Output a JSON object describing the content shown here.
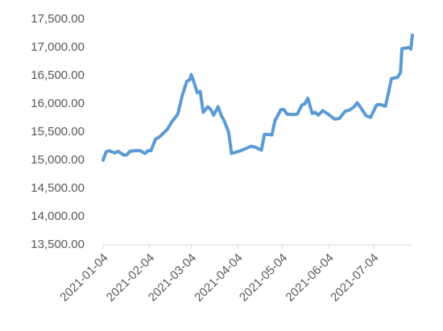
{
  "chart_data": {
    "type": "line",
    "x": [
      "2021-01-04",
      "2021-01-06",
      "2021-01-08",
      "2021-01-12",
      "2021-01-14",
      "2021-01-18",
      "2021-01-20",
      "2021-01-22",
      "2021-01-26",
      "2021-01-29",
      "2021-02-01",
      "2021-02-03",
      "2021-02-05",
      "2021-02-08",
      "2021-02-11",
      "2021-02-16",
      "2021-02-19",
      "2021-02-23",
      "2021-02-26",
      "2021-03-01",
      "2021-03-03",
      "2021-03-04",
      "2021-03-05",
      "2021-03-08",
      "2021-03-10",
      "2021-03-12",
      "2021-03-15",
      "2021-03-17",
      "2021-03-19",
      "2021-03-22",
      "2021-03-24",
      "2021-03-26",
      "2021-03-29",
      "2021-03-31",
      "2021-04-06",
      "2021-04-09",
      "2021-04-13",
      "2021-04-16",
      "2021-04-20",
      "2021-04-22",
      "2021-04-27",
      "2021-04-29",
      "2021-05-03",
      "2021-05-05",
      "2021-05-07",
      "2021-05-11",
      "2021-05-14",
      "2021-05-17",
      "2021-05-19",
      "2021-05-21",
      "2021-05-24",
      "2021-05-26",
      "2021-05-28",
      "2021-05-31",
      "2021-06-03",
      "2021-06-08",
      "2021-06-11",
      "2021-06-15",
      "2021-06-18",
      "2021-06-21",
      "2021-06-23",
      "2021-06-25",
      "2021-06-29",
      "2021-07-02",
      "2021-07-06",
      "2021-07-08",
      "2021-07-12",
      "2021-07-14",
      "2021-07-16",
      "2021-07-20",
      "2021-07-22",
      "2021-07-23",
      "2021-07-28",
      "2021-07-29",
      "2021-07-30"
    ],
    "series": [
      {
        "color": "#5b9bd5",
        "values": [
          15000,
          15150,
          15170,
          15130,
          15160,
          15090,
          15100,
          15160,
          15170,
          15170,
          15120,
          15170,
          15170,
          15370,
          15420,
          15550,
          15680,
          15820,
          16150,
          16400,
          16430,
          16520,
          16450,
          16200,
          16220,
          15850,
          15950,
          15900,
          15800,
          15950,
          15800,
          15700,
          15500,
          15120,
          15170,
          15200,
          15250,
          15230,
          15180,
          15460,
          15450,
          15700,
          15900,
          15900,
          15820,
          15810,
          15820,
          15980,
          16000,
          16100,
          15830,
          15850,
          15800,
          15880,
          15830,
          15730,
          15740,
          15870,
          15890,
          15950,
          16020,
          15950,
          15790,
          15760,
          15980,
          15990,
          15960,
          16200,
          16450,
          16470,
          16550,
          16980,
          17000,
          16970,
          17220
        ]
      }
    ],
    "xlim": [
      "2021-01-04",
      "2021-07-30"
    ],
    "xticks": [
      "2021-01-04",
      "2021-02-04",
      "2021-03-04",
      "2021-04-04",
      "2021-05-04",
      "2021-06-04",
      "2021-07-04"
    ],
    "ylim": [
      13500,
      17500
    ],
    "yticks": [
      {
        "value": 13500,
        "label": "13,500.00"
      },
      {
        "value": 14000,
        "label": "14,000.00"
      },
      {
        "value": 14500,
        "label": "14,500.00"
      },
      {
        "value": 15000,
        "label": "15,000.00"
      },
      {
        "value": 15500,
        "label": "15,500.00"
      },
      {
        "value": 16000,
        "label": "16,000.00"
      },
      {
        "value": 16500,
        "label": "16,500.00"
      },
      {
        "value": 17000,
        "label": "17,000.00"
      },
      {
        "value": 17500,
        "label": "17,500.00"
      }
    ],
    "grid": false
  }
}
